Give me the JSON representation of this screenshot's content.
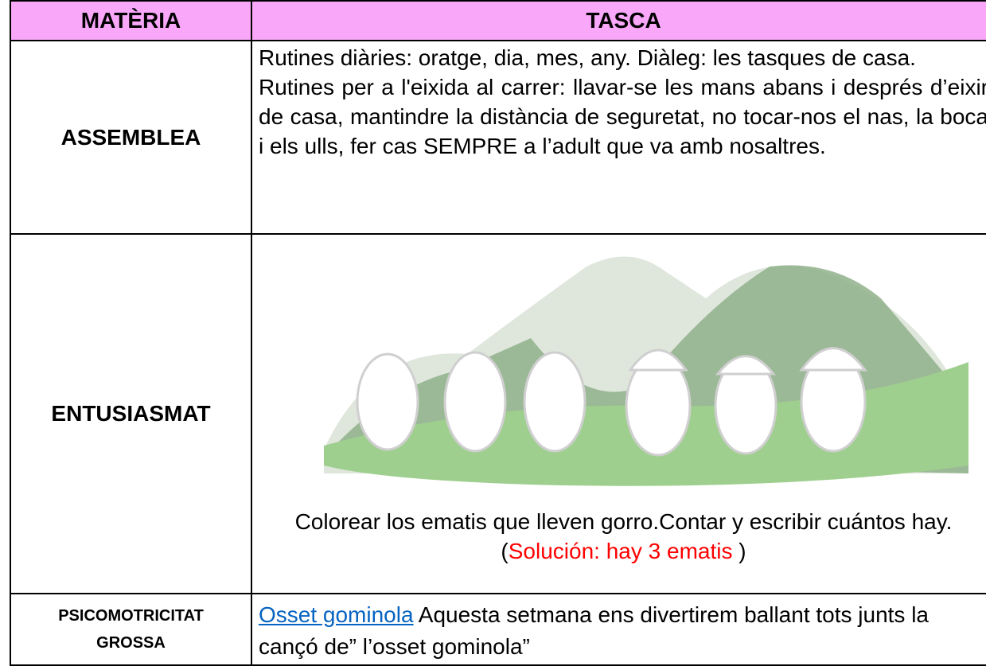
{
  "table": {
    "header": [
      "MATÈRIA",
      "TASCA"
    ],
    "rows": [
      {
        "subject": "ASSEMBLEA",
        "paragraphs": [
          "Rutines diàries: oratge, dia, mes, any. Diàleg: les tasques de casa.",
          "Rutines per a l'eixida al carrer: llavar-se les mans abans i després d’eixir de casa, mantindre la distància de seguretat, no tocar-nos el nas, la boca i els ulls, fer cas SEMPRE a l’adult que va amb nosaltres."
        ]
      },
      {
        "subject": "ENTUSIASMAT",
        "caption": "Colorear los ematis que lleven gorro.Contar y escribir cuántos hay. (",
        "solution": "Solución: hay 3 ematis",
        "caption_end": " )"
      },
      {
        "subject": "PSICOMOTRICITAT GROSSA",
        "link": "Osset gominola",
        "text": " Aquesta setmana ens divertirem ballant tots junts la cançó de” l’osset gominola”"
      }
    ]
  }
}
